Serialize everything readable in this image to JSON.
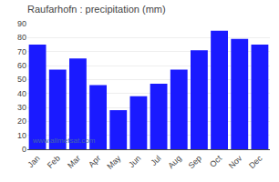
{
  "chart_data": {
    "type": "bar",
    "title": "Raufarhofn : precipitation (mm)",
    "categories": [
      "Jan",
      "Feb",
      "Mar",
      "Apr",
      "May",
      "Jun",
      "Jul",
      "Aug",
      "Sep",
      "Oct",
      "Nov",
      "Dec"
    ],
    "values": [
      75,
      57,
      65,
      46,
      28,
      38,
      47,
      57,
      71,
      85,
      79,
      75
    ],
    "color": "#1a1aff",
    "ylim": [
      0,
      90
    ],
    "yticks": [
      0,
      10,
      20,
      30,
      40,
      50,
      60,
      70,
      80,
      90
    ],
    "grid": true,
    "annotations": [
      "www.allmetsat.com"
    ]
  }
}
